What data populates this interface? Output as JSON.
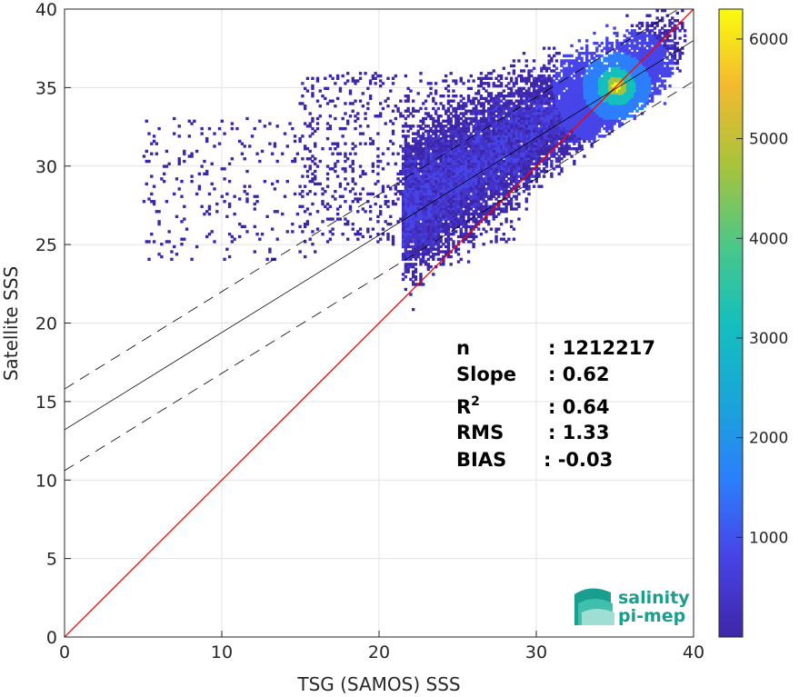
{
  "chart_data": {
    "type": "heatmap",
    "xlabel": "TSG (SAMOS) SSS",
    "ylabel": "Satellite SSS",
    "xlim": [
      0,
      40
    ],
    "ylim": [
      0,
      40
    ],
    "x_ticks": [
      0,
      10,
      20,
      30,
      40
    ],
    "y_ticks": [
      0,
      5,
      10,
      15,
      20,
      25,
      30,
      35,
      40
    ],
    "grid": true,
    "colormap": "parula",
    "colorbar": {
      "range": [
        0,
        6300
      ],
      "ticks": [
        1000,
        2000,
        3000,
        4000,
        5000,
        6000
      ]
    },
    "density_peak": {
      "x": 35,
      "y": 35
    },
    "one_to_one_line": {
      "from": [
        0,
        0
      ],
      "to": [
        40,
        40
      ],
      "color": "#ff0000"
    },
    "regression_line": {
      "intercept": 13.2,
      "slope": 0.62,
      "color": "#000000"
    },
    "confidence_lines": [
      {
        "intercept": 15.8,
        "slope": 0.62,
        "style": "dashed"
      },
      {
        "intercept": 10.6,
        "slope": 0.62,
        "style": "dashed"
      }
    ],
    "stats": [
      {
        "label": "n",
        "value": ": 1212217"
      },
      {
        "label": "Slope",
        "value": ": 0.62"
      },
      {
        "label": "R",
        "sup": "2",
        "value": ": 0.64"
      },
      {
        "label": "RMS",
        "value": ": 1.33"
      },
      {
        "label": "BIAS",
        "value": ": -0.03"
      }
    ]
  },
  "logo": {
    "line1": "salinity",
    "line2": "pi-mep"
  },
  "colors": {
    "low": "#3e26a8",
    "high": "#f9fb0e",
    "one_to_one": "#ff0000",
    "logo": "#1a9e8f"
  }
}
